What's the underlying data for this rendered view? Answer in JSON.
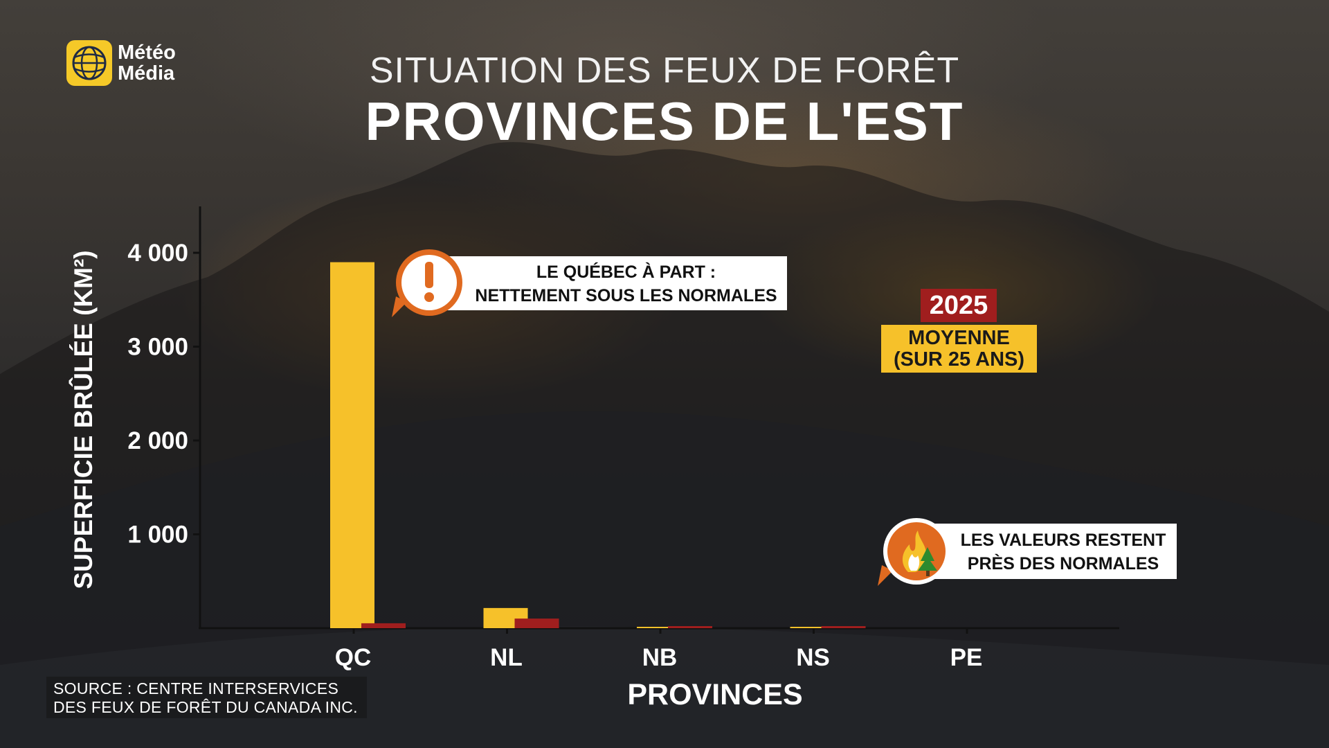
{
  "logo": {
    "line1": "Météo",
    "line2": "Média"
  },
  "header": {
    "title_top": "SITUATION DES FEUX DE FORÊT",
    "title_main": "PROVINCES DE L'EST"
  },
  "colors": {
    "series_avg": "#f6c12a",
    "series_2025": "#a01e1e",
    "callout_orange": "#e06a20",
    "logo_yellow": "#f5c928"
  },
  "legend": {
    "year_label": "2025",
    "avg_line1": "MOYENNE",
    "avg_line2": "(SUR 25 ANS)"
  },
  "callouts": {
    "quebec": {
      "line1": "LE QUÉBEC À PART :",
      "line2": "NETTEMENT SOUS LES NORMALES",
      "icon": "exclamation-icon"
    },
    "others": {
      "line1": "LES VALEURS RESTENT",
      "line2": "PRÈS DES NORMALES",
      "icon": "fire-tree-icon"
    }
  },
  "source": {
    "line1": "SOURCE : CENTRE INTERSERVICES",
    "line2": "DES FEUX DE FORÊT DU CANADA INC."
  },
  "chart_data": {
    "type": "bar",
    "title": "PROVINCES DE L'EST",
    "xlabel": "PROVINCES",
    "ylabel": "SUPERFICIE BRÛLÉE (KM²)",
    "categories": [
      "QC",
      "NL",
      "NB",
      "NS",
      "PE"
    ],
    "yticks": [
      1000,
      2000,
      3000,
      4000
    ],
    "ytick_labels": [
      "1 000",
      "2 000",
      "3 000",
      "4 000"
    ],
    "ylim": [
      0,
      4500
    ],
    "grid": false,
    "legend_position": "right",
    "series": [
      {
        "name": "MOYENNE (SUR 25 ANS)",
        "color": "#f6c12a",
        "values": [
          3900,
          215,
          8,
          8,
          0
        ]
      },
      {
        "name": "2025",
        "color": "#a01e1e",
        "values": [
          45,
          95,
          2,
          1,
          0
        ]
      }
    ]
  }
}
